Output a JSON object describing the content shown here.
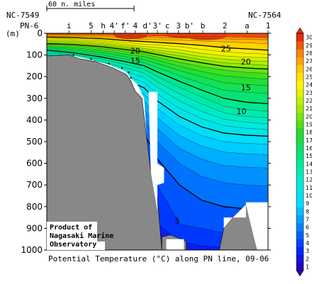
{
  "chart_data": {
    "type": "heatmap",
    "title": "Potential Temperature (°C) along PN line, 09-06",
    "ylabel": "(m)",
    "ylim": [
      1000,
      0
    ],
    "y_ticks": [
      "0",
      "100",
      "200",
      "300",
      "400",
      "500",
      "600",
      "700",
      "800",
      "900",
      "1000"
    ],
    "scale_bar_label": "60 n. miles",
    "station_ids": [
      "NC-7549",
      "NC-7564"
    ],
    "stations": [
      "PN-6",
      "i",
      "5",
      "h",
      "4'",
      "f'",
      "4",
      "d'",
      "3'",
      "c",
      "3",
      "b'",
      "b",
      "2",
      "a",
      "1"
    ],
    "colorbar": {
      "ticks": [
        1,
        2,
        3,
        4,
        5,
        6,
        7,
        8,
        9,
        10,
        11,
        12,
        13,
        14,
        15,
        16,
        17,
        18,
        19,
        20,
        21,
        22,
        23,
        24,
        25,
        26,
        27,
        28,
        29,
        30
      ],
      "range": [
        1,
        30
      ]
    },
    "contour_labels": [
      {
        "value": "25",
        "x": 0.81,
        "depth": 70
      },
      {
        "value": "20",
        "x": 0.4,
        "depth": 80
      },
      {
        "value": "15",
        "x": 0.4,
        "depth": 125
      },
      {
        "value": "20",
        "x": 0.9,
        "depth": 130
      },
      {
        "value": "15",
        "x": 0.9,
        "depth": 250
      },
      {
        "value": "10",
        "x": 0.88,
        "depth": 360
      },
      {
        "value": "5",
        "x": 0.59,
        "depth": 865
      }
    ],
    "credit": [
      "Product of",
      "Nagasaki Marine",
      "Observatory"
    ]
  }
}
